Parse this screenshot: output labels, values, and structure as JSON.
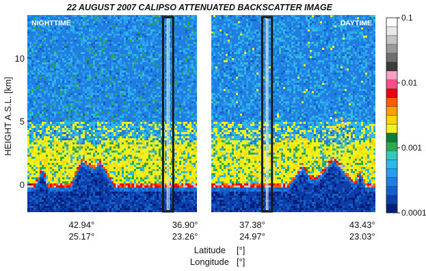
{
  "chart_data": {
    "type": "heatmap",
    "title": "22 AUGUST 2007 CALIPSO ATTENUATED BACKSCATTER IMAGE",
    "ylabel": "HEIGHT A.S.L. [km]",
    "xlabel": "Latitude [°]",
    "xlabel2": "Longitude [°]",
    "xlabel_parts": {
      "lat_name": "Latitude",
      "lat_unit": "[°]",
      "lon_name": "Longitude",
      "lon_unit": "[°]"
    },
    "ylim": [
      -2.2,
      13.4
    ],
    "y_ticks": [
      0,
      5,
      10
    ],
    "colorbar": {
      "scale": "log",
      "range": [
        0.0001,
        0.1
      ],
      "tick_values": [
        0.1,
        0.01,
        0.001,
        0.0001
      ],
      "tick_labels": [
        "0.1",
        "0.01",
        "0.001",
        "0.0001"
      ]
    },
    "panels": [
      {
        "label": "NIGHTTIME",
        "label_position": "top-left",
        "x_ticks": [
          {
            "lat": "42.94°",
            "lon": "25.17°",
            "frac": 0.32
          },
          {
            "lat": "36.90°",
            "lon": "23.26°",
            "frac": 0.93
          }
        ],
        "highlight_frac": [
          0.8,
          0.86
        ],
        "layers": {
          "aerosol_top_km": 3.5,
          "surface_km": 0
        }
      },
      {
        "label": "DAYTIME",
        "label_position": "top-right",
        "x_ticks": [
          {
            "lat": "37.38°",
            "lon": "24.97°",
            "frac": 0.25
          },
          {
            "lat": "43.43°",
            "lon": "23.03°",
            "frac": 0.92
          }
        ],
        "highlight_frac": [
          0.31,
          0.37
        ],
        "layers": {
          "aerosol_top_km": 3.5,
          "surface_km": 0
        }
      }
    ]
  },
  "colors": {
    "palette": [
      "#001f7a",
      "#0b3ea8",
      "#1560c8",
      "#1f7ee0",
      "#2a9cf0",
      "#2fb7ea",
      "#35c8b8",
      "#2ea84a",
      "#0c7d34",
      "#f1f21a",
      "#ffd400",
      "#ff9f00",
      "#ff5c00",
      "#e60012",
      "#ff4f8a",
      "#ff9ec4",
      "#3a3a3a",
      "#6e6e6e",
      "#9a9a9a",
      "#c4c4c4",
      "#e8e8e8",
      "#ffffff"
    ],
    "background": "#ffffff"
  }
}
